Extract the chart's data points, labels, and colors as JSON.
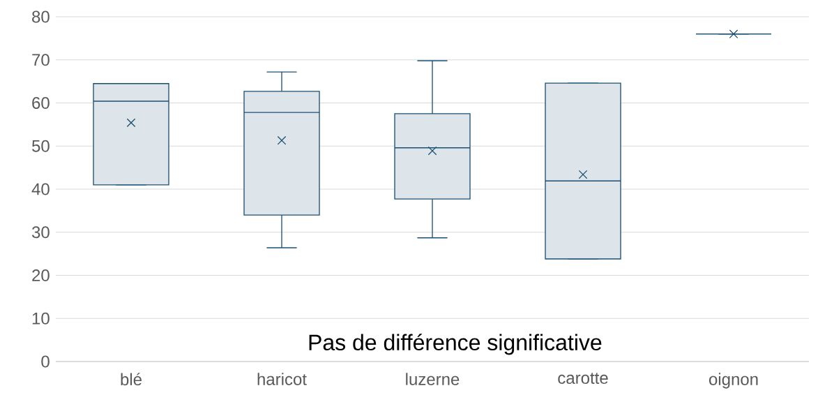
{
  "chart_data": {
    "type": "box",
    "categories": [
      "blé",
      "haricot",
      "luzerne",
      "carotte",
      "oignon"
    ],
    "boxes": [
      {
        "low": 41.0,
        "q1": 41.0,
        "median": 60.4,
        "q3": 64.5,
        "high": 64.5,
        "mean": 55.4
      },
      {
        "low": 26.4,
        "q1": 34.0,
        "median": 57.8,
        "q3": 62.7,
        "high": 67.2,
        "mean": 51.3
      },
      {
        "low": 28.7,
        "q1": 37.7,
        "median": 49.6,
        "q3": 57.5,
        "high": 69.8,
        "mean": 48.9
      },
      {
        "low": 23.8,
        "q1": 23.8,
        "median": 41.9,
        "q3": 64.6,
        "high": 64.6,
        "mean": 43.4
      },
      {
        "low": 76.0,
        "q1": 76.0,
        "median": 76.0,
        "q3": 76.0,
        "high": 76.0,
        "mean": 76.0
      }
    ],
    "color": "#1b4f72",
    "marker": "cross",
    "ylim": [
      0,
      80
    ],
    "yticks": [
      0,
      10,
      20,
      30,
      40,
      50,
      60,
      70,
      80
    ],
    "grid": "y",
    "annotations": [
      "Pas de différence significative"
    ]
  }
}
